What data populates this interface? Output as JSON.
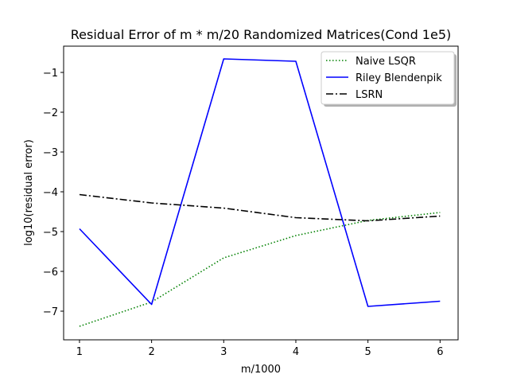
{
  "chart_data": {
    "type": "line",
    "title": "Residual Error of m * m/20 Randomized Matrices(Cond 1e5)",
    "xlabel": "m/1000",
    "ylabel": "log10(residual error)",
    "x": [
      1,
      2,
      3,
      4,
      5,
      6
    ],
    "xlim": [
      0.78,
      6.25
    ],
    "ylim": [
      -7.72,
      -0.34
    ],
    "xticks": [
      1,
      2,
      3,
      4,
      5,
      6
    ],
    "xtick_labels": [
      "1",
      "2",
      "3",
      "4",
      "5",
      "6"
    ],
    "yticks": [
      -7,
      -6,
      -5,
      -4,
      -3,
      -2,
      -1
    ],
    "ytick_labels": [
      "−7",
      "−6",
      "−5",
      "−4",
      "−3",
      "−2",
      "−1"
    ],
    "grid": false,
    "legend_position": "upper right",
    "series": [
      {
        "name": "Naive LSQR",
        "color": "#008000",
        "style": "dotted",
        "values": [
          -7.38,
          -6.77,
          -5.66,
          -5.1,
          -4.72,
          -4.52
        ]
      },
      {
        "name": "Riley Blendenpik",
        "color": "#0000ff",
        "style": "solid",
        "values": [
          -4.93,
          -6.83,
          -0.66,
          -0.72,
          -6.88,
          -6.75
        ]
      },
      {
        "name": "LSRN",
        "color": "#000000",
        "style": "dashdot",
        "values": [
          -4.07,
          -4.28,
          -4.41,
          -4.65,
          -4.73,
          -4.61
        ]
      }
    ]
  }
}
